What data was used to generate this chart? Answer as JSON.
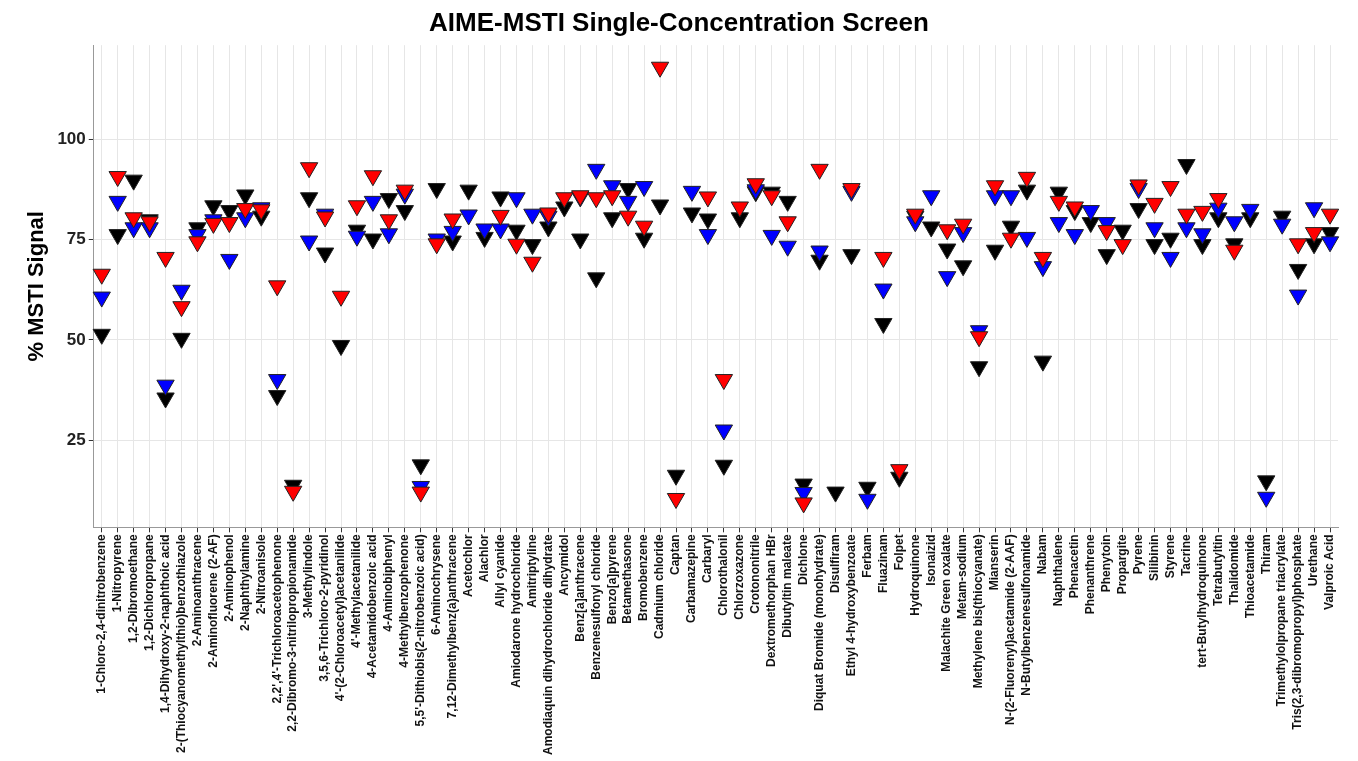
{
  "chart_data": {
    "type": "scatter",
    "title": "AIME-MSTI Single-Concentration Screen",
    "ylabel": "% MSTI Signal",
    "categories": [
      "1-Chloro-2,4-dinitrobenzene",
      "1-Nitropyrene",
      "1,2-Dibromoethane",
      "1,2-Dichloropropane",
      "1,4-Dihydroxy-2-naphthoic acid",
      "2-(Thiocyanomethylthio)benzothiazole",
      "2-Aminoanthracene",
      "2-Aminofluorene (2-AF)",
      "2-Aminophenol",
      "2-Naphthylamine",
      "2-Nitroanisole",
      "2,2',4'-Trichloroacetophenone",
      "2,2-Dibromo-3-nitrilopropionamide",
      "3-Methylindole",
      "3,5,6-Trichloro-2-pyridinol",
      "4'-(2-Chloroacetyl)acetanilide",
      "4'-Methylacetanilide",
      "4-Acetamidobenzoic acid",
      "4-Aminobiphenyl",
      "4-Methylbenzophenone",
      "5,5'-Dithiobis(2-nitrobenzoic acid)",
      "6-Aminochrysene",
      "7,12-Dimethylbenz(a)anthracene",
      "Acetochlor",
      "Alachlor",
      "Allyl cyanide",
      "Amiodarone hydrochloride",
      "Amitriptyline",
      "Amodiaquin dihydrochloride dihydrate",
      "Ancymidol",
      "Benz[a]anthracene",
      "Benzenesulfonyl chloride",
      "Benzo[a]pyrene",
      "Betamethasone",
      "Bromobenzene",
      "Cadmium chloride",
      "Captan",
      "Carbamazepine",
      "Carbaryl",
      "Chlorothalonil",
      "Chlorzoxazone",
      "Crotononitrile",
      "Dextromethorphan HBr",
      "Dibutyltin maleate",
      "Dichlone",
      "Diquat Bromide (monohydrate)",
      "Disulfiram",
      "Ethyl 4-hydroxybenzoate",
      "Ferbam",
      "Fluazinam",
      "Folpet",
      "Hydroquinone",
      "Isonaizid",
      "Malachite Green oxalate",
      "Metam-sodium",
      "Methylene bis(thiocyanate)",
      "Mianserin",
      "N-(2-Fluorenyl)acetamide (2-AAF)",
      "N-Butylbenzenesulfonamide",
      "Nabam",
      "Naphthalene",
      "Phenacetin",
      "Phenanthrene",
      "Phenytoin",
      "Propargite",
      "Pyrene",
      "Silibinin",
      "Styrene",
      "Tacrine",
      "tert-Butylhydroquinone",
      "Tetrabutyltin",
      "Thalidomide",
      "Thioacetamide",
      "Thiram",
      "Trimethylolpropane triacrylate",
      "Tris(2,3-dibromopropyl)phosphate",
      "Urethane",
      "Valproic Acid"
    ],
    "series": [
      {
        "color": "#ff0000",
        "values": [
          66.4,
          90.8,
          80.5,
          79.5,
          70.6,
          58.3,
          74.5,
          79.1,
          79.3,
          82.8,
          82.5,
          63.5,
          12.2,
          93,
          80.7,
          60.9,
          83.5,
          91,
          80,
          87.4,
          12,
          74,
          80.2,
          null,
          null,
          81.1,
          73.9,
          69.4,
          81.7,
          85.5,
          86,
          85.5,
          86,
          80.9,
          78.4,
          118.1,
          10.4,
          null,
          85.7,
          40.1,
          83.2,
          89,
          86,
          79.5,
          9.3,
          92.6,
          null,
          87.8,
          null,
          70.6,
          17.6,
          81.4,
          null,
          77.5,
          78.9,
          50.8,
          88.5,
          75.4,
          90.6,
          70.6,
          84.6,
          83.2,
          null,
          77.3,
          73.8,
          88.7,
          84.1,
          88.3,
          81.4,
          82.1,
          85.3,
          72.4,
          null,
          null,
          null,
          74,
          76.8,
          81.4
        ]
      },
      {
        "color": "#0000ff",
        "values": [
          60.7,
          84.6,
          78,
          78,
          38.7,
          62.4,
          76.3,
          80,
          70.1,
          80.5,
          83,
          40.1,
          null,
          74.7,
          81.4,
          null,
          75.9,
          84.6,
          76.5,
          86.4,
          13.4,
          75.2,
          77.1,
          81.2,
          77.7,
          77.7,
          85.5,
          81.4,
          80.9,
          null,
          85.7,
          92.6,
          88.5,
          84.6,
          88.3,
          null,
          null,
          87.1,
          76.3,
          27.5,
          null,
          87.5,
          76.1,
          73.4,
          11.9,
          72.2,
          null,
          87.1,
          10.2,
          62.7,
          null,
          79.5,
          86,
          65.8,
          76.8,
          52.3,
          86,
          86,
          75.6,
          68.3,
          79.3,
          76.3,
          82.3,
          79.3,
          null,
          87.8,
          78,
          70.6,
          78,
          76.5,
          82.9,
          79.5,
          82.6,
          10.7,
          78.9,
          61.2,
          83,
          74.5
        ]
      },
      {
        "color": "#000000",
        "values": [
          51.4,
          76.3,
          89.9,
          80,
          35.5,
          50.4,
          78,
          83.5,
          82.3,
          86.2,
          80.9,
          36.1,
          13.7,
          85.5,
          71.7,
          48.6,
          77.4,
          75.2,
          85.3,
          82.3,
          18.8,
          87.8,
          74.7,
          87.4,
          75.6,
          85.7,
          77.4,
          73.8,
          78.2,
          83.2,
          75.2,
          65.5,
          80.5,
          87.8,
          75.4,
          83.7,
          16.2,
          81.7,
          80.2,
          18.7,
          80.5,
          87,
          86.9,
          84.6,
          14,
          69.9,
          12,
          71.3,
          13.2,
          54.1,
          15.7,
          80.9,
          78.2,
          72.7,
          68.5,
          43.3,
          72.4,
          78.4,
          87.4,
          44.7,
          86.9,
          82.3,
          79.3,
          71.3,
          77.4,
          82.8,
          73.8,
          75.4,
          93.8,
          73.8,
          80.5,
          74,
          80.5,
          14.8,
          80.9,
          67.6,
          74,
          76.8
        ]
      }
    ],
    "ylim": [
      3.2,
      123.6
    ],
    "yticks": [
      25,
      50,
      75,
      100
    ],
    "grid": true,
    "legend": false,
    "marker": "triangle"
  }
}
